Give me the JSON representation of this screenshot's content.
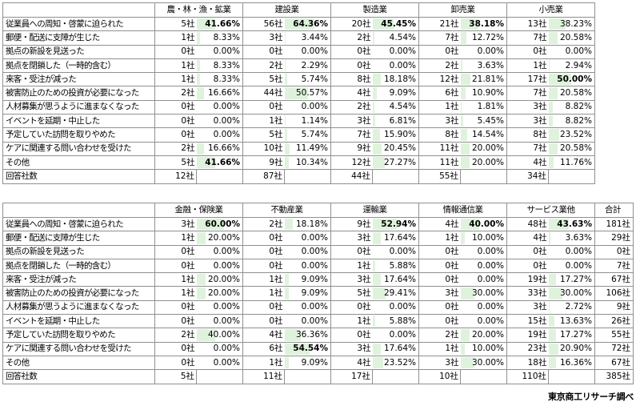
{
  "highlight_color": "#dff3dc",
  "rows": [
    "従業員への周知・啓蒙に迫られた",
    "郵便・配送に支障が生じた",
    "拠点の新設を見送った",
    "拠点を閉鎖した（一時的含む）",
    "来客・受注が減った",
    "被害防止のための投資が必要になった",
    "人材募集が思うように進まなくなった",
    "イベントを延期・中止した",
    "予定していた訪問を取りやめた",
    "ケアに関連する問い合わせを受けた",
    "その他"
  ],
  "respondents_label": "回答社数",
  "table1": {
    "groups": [
      {
        "name": "農・林・漁・鉱業",
        "respondents": "12社",
        "cells": [
          [
            "5社",
            "41.66%",
            41.66,
            true
          ],
          [
            "1社",
            "8.33%",
            8.33,
            false
          ],
          [
            "0社",
            "0.00%",
            0,
            false
          ],
          [
            "1社",
            "8.33%",
            8.33,
            false
          ],
          [
            "1社",
            "8.33%",
            8.33,
            false
          ],
          [
            "2社",
            "16.66%",
            16.66,
            false
          ],
          [
            "0社",
            "0.00%",
            0,
            false
          ],
          [
            "0社",
            "0.00%",
            0,
            false
          ],
          [
            "0社",
            "0.00%",
            0,
            false
          ],
          [
            "2社",
            "16.66%",
            16.66,
            false
          ],
          [
            "5社",
            "41.66%",
            41.66,
            true
          ]
        ]
      },
      {
        "name": "建設業",
        "respondents": "87社",
        "cells": [
          [
            "56社",
            "64.36%",
            64.36,
            true
          ],
          [
            "3社",
            "3.44%",
            3.44,
            false
          ],
          [
            "0社",
            "0.00%",
            0,
            false
          ],
          [
            "2社",
            "2.29%",
            2.29,
            false
          ],
          [
            "5社",
            "5.74%",
            5.74,
            false
          ],
          [
            "44社",
            "50.57%",
            50.57,
            false
          ],
          [
            "0社",
            "0.00%",
            0,
            false
          ],
          [
            "1社",
            "1.14%",
            1.14,
            false
          ],
          [
            "5社",
            "5.74%",
            5.74,
            false
          ],
          [
            "10社",
            "11.49%",
            11.49,
            false
          ],
          [
            "9社",
            "10.34%",
            10.34,
            false
          ]
        ]
      },
      {
        "name": "製造業",
        "respondents": "44社",
        "cells": [
          [
            "20社",
            "45.45%",
            45.45,
            true
          ],
          [
            "2社",
            "4.54%",
            4.54,
            false
          ],
          [
            "0社",
            "0.00%",
            0,
            false
          ],
          [
            "0社",
            "0.00%",
            0,
            false
          ],
          [
            "8社",
            "18.18%",
            18.18,
            false
          ],
          [
            "4社",
            "9.09%",
            9.09,
            false
          ],
          [
            "2社",
            "4.54%",
            4.54,
            false
          ],
          [
            "3社",
            "6.81%",
            6.81,
            false
          ],
          [
            "7社",
            "15.90%",
            15.9,
            false
          ],
          [
            "9社",
            "20.45%",
            20.45,
            false
          ],
          [
            "12社",
            "27.27%",
            27.27,
            false
          ]
        ]
      },
      {
        "name": "卸売業",
        "respondents": "55社",
        "cells": [
          [
            "21社",
            "38.18%",
            38.18,
            true
          ],
          [
            "7社",
            "12.72%",
            12.72,
            false
          ],
          [
            "0社",
            "0.00%",
            0,
            false
          ],
          [
            "2社",
            "3.63%",
            3.63,
            false
          ],
          [
            "12社",
            "21.81%",
            21.81,
            false
          ],
          [
            "6社",
            "10.90%",
            10.9,
            false
          ],
          [
            "1社",
            "1.81%",
            1.81,
            false
          ],
          [
            "3社",
            "5.45%",
            5.45,
            false
          ],
          [
            "8社",
            "14.54%",
            14.54,
            false
          ],
          [
            "11社",
            "20.00%",
            20.0,
            false
          ],
          [
            "11社",
            "20.00%",
            20.0,
            false
          ]
        ]
      },
      {
        "name": "小売業",
        "respondents": "34社",
        "cells": [
          [
            "13社",
            "38.23%",
            38.23,
            false
          ],
          [
            "7社",
            "20.58%",
            20.58,
            false
          ],
          [
            "0社",
            "0.00%",
            0,
            false
          ],
          [
            "1社",
            "2.94%",
            2.94,
            false
          ],
          [
            "17社",
            "50.00%",
            50.0,
            true
          ],
          [
            "7社",
            "20.58%",
            20.58,
            false
          ],
          [
            "3社",
            "8.82%",
            8.82,
            false
          ],
          [
            "3社",
            "8.82%",
            8.82,
            false
          ],
          [
            "8社",
            "23.52%",
            23.52,
            false
          ],
          [
            "7社",
            "20.58%",
            20.58,
            false
          ],
          [
            "4社",
            "11.76%",
            11.76,
            false
          ]
        ]
      }
    ]
  },
  "table2": {
    "total_header": "合計",
    "totals": [
      "181社",
      "29社",
      "0社",
      "7社",
      "67社",
      "106社",
      "9社",
      "26社",
      "55社",
      "72社",
      "67社"
    ],
    "total_respondents": "385社",
    "groups": [
      {
        "name": "金融・保険業",
        "respondents": "5社",
        "cells": [
          [
            "3社",
            "60.00%",
            60.0,
            true
          ],
          [
            "1社",
            "20.00%",
            20.0,
            false
          ],
          [
            "0社",
            "0.00%",
            0,
            false
          ],
          [
            "0社",
            "0.00%",
            0,
            false
          ],
          [
            "1社",
            "20.00%",
            20.0,
            false
          ],
          [
            "1社",
            "20.00%",
            20.0,
            false
          ],
          [
            "0社",
            "0.00%",
            0,
            false
          ],
          [
            "0社",
            "0.00%",
            0,
            false
          ],
          [
            "2社",
            "40.00%",
            40.0,
            false
          ],
          [
            "0社",
            "0.00%",
            0,
            false
          ],
          [
            "0社",
            "0.00%",
            0,
            false
          ]
        ]
      },
      {
        "name": "不動産業",
        "respondents": "11社",
        "cells": [
          [
            "2社",
            "18.18%",
            18.18,
            false
          ],
          [
            "0社",
            "0.00%",
            0,
            false
          ],
          [
            "0社",
            "0.00%",
            0,
            false
          ],
          [
            "0社",
            "0.00%",
            0,
            false
          ],
          [
            "1社",
            "9.09%",
            9.09,
            false
          ],
          [
            "1社",
            "9.09%",
            9.09,
            false
          ],
          [
            "0社",
            "0.00%",
            0,
            false
          ],
          [
            "0社",
            "0.00%",
            0,
            false
          ],
          [
            "4社",
            "36.36%",
            36.36,
            false
          ],
          [
            "6社",
            "54.54%",
            54.54,
            true
          ],
          [
            "1社",
            "9.09%",
            9.09,
            false
          ]
        ]
      },
      {
        "name": "運輸業",
        "respondents": "17社",
        "cells": [
          [
            "9社",
            "52.94%",
            52.94,
            true
          ],
          [
            "3社",
            "17.64%",
            17.64,
            false
          ],
          [
            "0社",
            "0.00%",
            0,
            false
          ],
          [
            "1社",
            "5.88%",
            5.88,
            false
          ],
          [
            "3社",
            "17.64%",
            17.64,
            false
          ],
          [
            "5社",
            "29.41%",
            29.41,
            false
          ],
          [
            "0社",
            "0.00%",
            0,
            false
          ],
          [
            "1社",
            "5.88%",
            5.88,
            false
          ],
          [
            "0社",
            "0.00%",
            0,
            false
          ],
          [
            "3社",
            "17.64%",
            17.64,
            false
          ],
          [
            "4社",
            "23.52%",
            23.52,
            false
          ]
        ]
      },
      {
        "name": "情報通信業",
        "respondents": "10社",
        "cells": [
          [
            "4社",
            "40.00%",
            40.0,
            true
          ],
          [
            "1社",
            "10.00%",
            10.0,
            false
          ],
          [
            "0社",
            "0.00%",
            0,
            false
          ],
          [
            "0社",
            "0.00%",
            0,
            false
          ],
          [
            "0社",
            "0.00%",
            0,
            false
          ],
          [
            "3社",
            "30.00%",
            30.0,
            false
          ],
          [
            "0社",
            "0.00%",
            0,
            false
          ],
          [
            "0社",
            "0.00%",
            0,
            false
          ],
          [
            "2社",
            "20.00%",
            20.0,
            false
          ],
          [
            "1社",
            "10.00%",
            10.0,
            false
          ],
          [
            "3社",
            "30.00%",
            30.0,
            false
          ]
        ]
      },
      {
        "name": "サービス業他",
        "respondents": "110社",
        "cells": [
          [
            "48社",
            "43.63%",
            43.63,
            true
          ],
          [
            "4社",
            "3.63%",
            3.63,
            false
          ],
          [
            "0社",
            "0.00%",
            0,
            false
          ],
          [
            "0社",
            "0.00%",
            0,
            false
          ],
          [
            "19社",
            "17.27%",
            17.27,
            false
          ],
          [
            "33社",
            "30.00%",
            30.0,
            false
          ],
          [
            "3社",
            "2.72%",
            2.72,
            false
          ],
          [
            "15社",
            "13.63%",
            13.63,
            false
          ],
          [
            "19社",
            "17.27%",
            17.27,
            false
          ],
          [
            "23社",
            "20.90%",
            20.9,
            false
          ],
          [
            "18社",
            "16.36%",
            16.36,
            false
          ]
        ]
      }
    ]
  },
  "source": "東京商工リサーチ調べ"
}
